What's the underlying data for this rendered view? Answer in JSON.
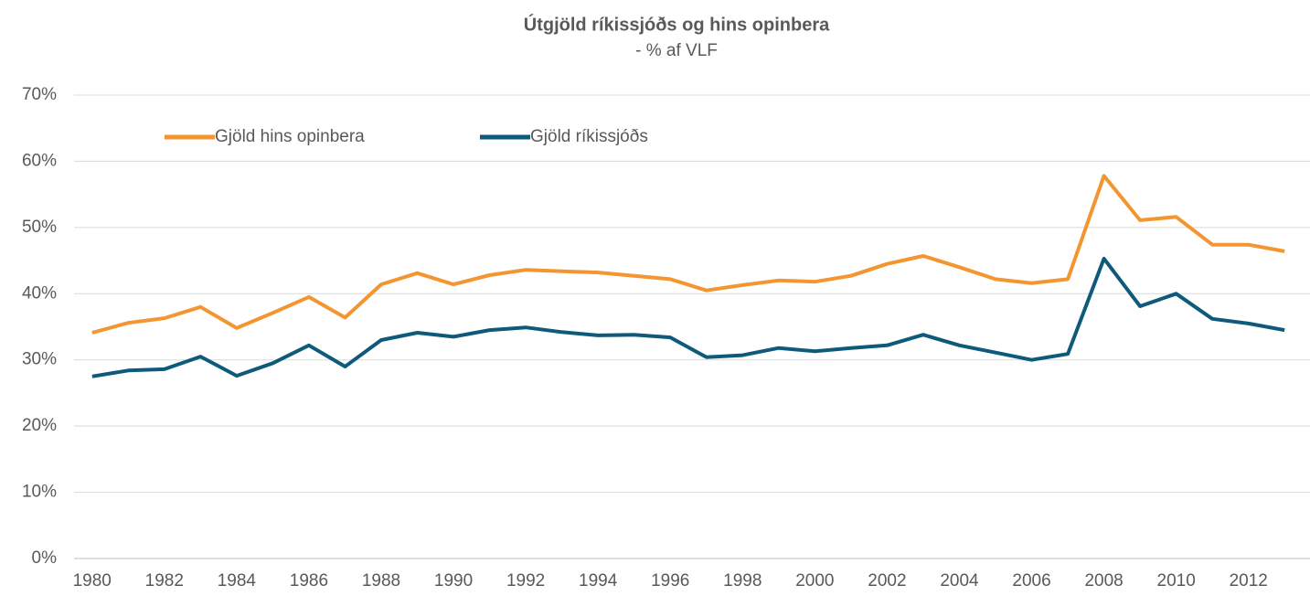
{
  "chart_data": {
    "type": "line",
    "title": "Útgjöld ríkissjóðs og hins opinbera",
    "subtitle": "- % af VLF",
    "x": [
      1980,
      1981,
      1982,
      1983,
      1984,
      1985,
      1986,
      1987,
      1988,
      1989,
      1990,
      1991,
      1992,
      1993,
      1994,
      1995,
      1996,
      1997,
      1998,
      1999,
      2000,
      2001,
      2002,
      2003,
      2004,
      2005,
      2006,
      2007,
      2008,
      2009,
      2010,
      2011,
      2012,
      2013
    ],
    "series": [
      {
        "name": "Gjöld hins opinbera",
        "color": "#f39530",
        "values": [
          34.1,
          35.6,
          36.3,
          38.0,
          34.8,
          37.1,
          39.5,
          36.4,
          41.4,
          43.1,
          41.4,
          42.8,
          43.6,
          43.4,
          43.2,
          42.7,
          42.2,
          40.5,
          41.3,
          42.0,
          41.8,
          42.7,
          44.5,
          45.7,
          44.0,
          42.2,
          41.6,
          42.2,
          57.8,
          51.1,
          51.6,
          47.4,
          47.4,
          46.4
        ]
      },
      {
        "name": "Gjöld ríkissjóðs",
        "color": "#0e5a7a",
        "values": [
          27.5,
          28.4,
          28.6,
          30.5,
          27.6,
          29.5,
          32.2,
          29.0,
          33.0,
          34.1,
          33.5,
          34.5,
          34.9,
          34.2,
          33.7,
          33.8,
          33.4,
          30.4,
          30.7,
          31.8,
          31.3,
          31.8,
          32.2,
          33.8,
          32.2,
          31.1,
          30.0,
          30.9,
          45.3,
          38.1,
          40.0,
          36.2,
          35.5,
          34.5
        ]
      }
    ],
    "xlim": [
      1979.5,
      2013.5
    ],
    "xticks": [
      1980,
      1982,
      1984,
      1986,
      1988,
      1990,
      1992,
      1994,
      1996,
      1998,
      2000,
      2002,
      2004,
      2006,
      2008,
      2010,
      2012
    ],
    "ylim": [
      0,
      70
    ],
    "yticks": [
      {
        "value": 0,
        "label": "0%"
      },
      {
        "value": 10,
        "label": "10%"
      },
      {
        "value": 20,
        "label": "20%"
      },
      {
        "value": 30,
        "label": "30%"
      },
      {
        "value": 40,
        "label": "40%"
      },
      {
        "value": 50,
        "label": "50%"
      },
      {
        "value": 60,
        "label": "60%"
      },
      {
        "value": 70,
        "label": "70%"
      }
    ],
    "grid": true,
    "legend": "top-left"
  }
}
